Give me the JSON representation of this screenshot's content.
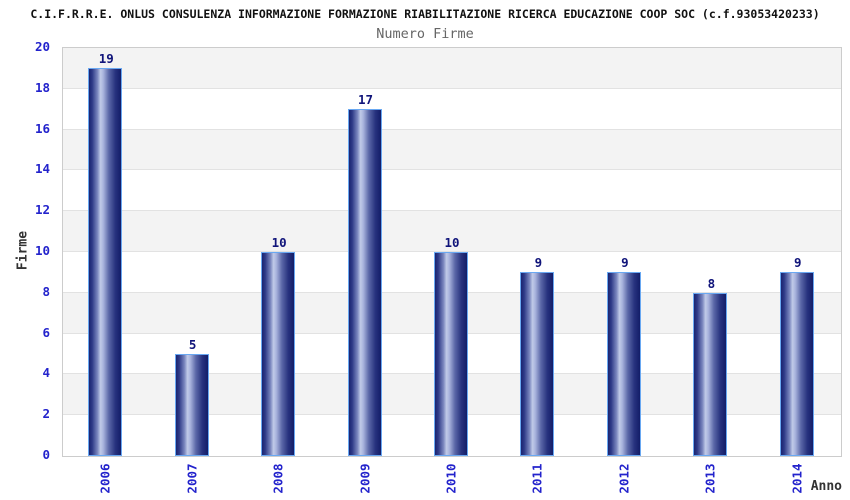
{
  "chart_data": {
    "type": "bar",
    "title": "C.I.F.R.R.E. ONLUS CONSULENZA INFORMAZIONE FORMAZIONE RIABILITAZIONE RICERCA EDUCAZIONE COOP SOC (c.f.93053420233)",
    "subtitle": "Numero Firme",
    "xlabel": "Anno",
    "ylabel": "Firme",
    "categories": [
      "2006",
      "2007",
      "2008",
      "2009",
      "2010",
      "2011",
      "2012",
      "2013",
      "2014"
    ],
    "values": [
      19,
      5,
      10,
      17,
      10,
      9,
      9,
      8,
      9
    ],
    "ylim": [
      0,
      20
    ],
    "yticks": [
      0,
      2,
      4,
      6,
      8,
      10,
      12,
      14,
      16,
      18,
      20
    ],
    "grid": "horizontal alternating bands, gridline every 2 units",
    "legend": "none",
    "colors": {
      "page_bg": "#ffffff",
      "title_color": "#111111",
      "subtitle_color": "#666666",
      "tick_label_blue": "#2323cc",
      "value_label_navy": "#10147a",
      "axis_title_color": "#333333",
      "bar_dark": "#1a2470",
      "bar_mid": "#7d89c0",
      "bar_highlight": "#c1cbe9",
      "bar_border": "#69a8f2",
      "band_gray": "#f3f3f3",
      "band_white": "#ffffff",
      "grid_line": "#e2e2e2",
      "plot_border": "#cccccc"
    }
  }
}
